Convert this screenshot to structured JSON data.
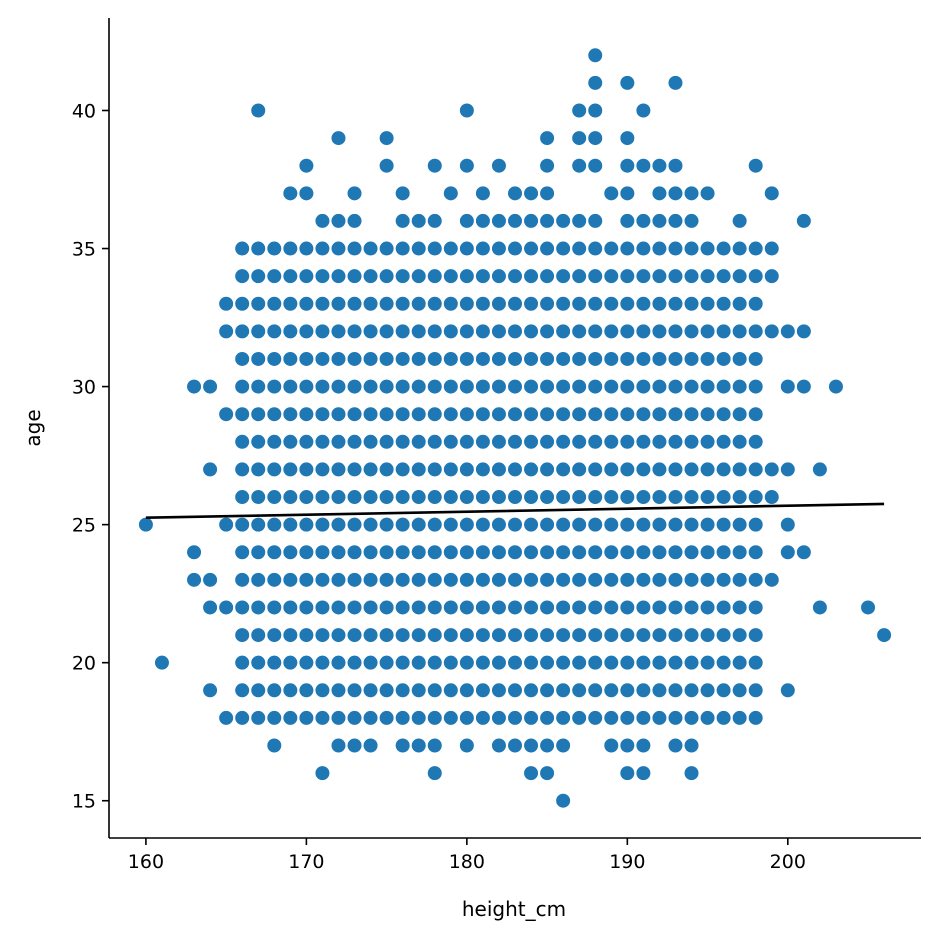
{
  "chart_data": {
    "type": "scatter",
    "title": "",
    "xlabel": "height_cm",
    "ylabel": "age",
    "xlim": [
      157.7,
      208.3
    ],
    "ylim": [
      13.65,
      43.35
    ],
    "xticks": [
      160,
      170,
      180,
      190,
      200
    ],
    "xtick_labels": [
      "160",
      "170",
      "180",
      "190",
      "200"
    ],
    "yticks": [
      15,
      20,
      25,
      30,
      35,
      40
    ],
    "ytick_labels": [
      "15",
      "20",
      "25",
      "30",
      "35",
      "40"
    ],
    "grid": false,
    "legend": false,
    "colors": {
      "points": "#1f77b4",
      "fit_line": "#000000",
      "axes": "#000000"
    },
    "dense_block": [
      {
        "x_range": [
          166,
          198
        ],
        "y_range": [
          18,
          35
        ]
      },
      {
        "x_range": [
          168,
          197
        ],
        "y_range": [
          19,
          34
        ]
      },
      {
        "x_range": [
          170,
          197
        ],
        "y_range": [
          20,
          32
        ]
      }
    ],
    "points": [
      [
        160,
        25
      ],
      [
        161,
        20
      ],
      [
        163,
        30
      ],
      [
        163,
        24
      ],
      [
        163,
        23
      ],
      [
        164,
        30
      ],
      [
        164,
        27
      ],
      [
        164,
        23
      ],
      [
        164,
        22
      ],
      [
        164,
        19
      ],
      [
        165,
        33
      ],
      [
        165,
        32
      ],
      [
        165,
        29
      ],
      [
        165,
        25
      ],
      [
        165,
        22
      ],
      [
        165,
        18
      ],
      [
        166,
        32
      ],
      [
        166,
        30
      ],
      [
        166,
        28
      ],
      [
        166,
        25
      ],
      [
        166,
        24
      ],
      [
        166,
        21
      ],
      [
        166,
        20
      ],
      [
        166,
        18
      ],
      [
        167,
        40
      ],
      [
        167,
        32
      ],
      [
        167,
        31
      ],
      [
        167,
        27
      ],
      [
        167,
        26
      ],
      [
        167,
        24
      ],
      [
        167,
        23
      ],
      [
        167,
        22
      ],
      [
        167,
        19
      ],
      [
        168,
        32
      ],
      [
        168,
        31
      ],
      [
        168,
        29
      ],
      [
        168,
        27
      ],
      [
        168,
        25
      ],
      [
        168,
        24
      ],
      [
        168,
        23
      ],
      [
        168,
        22
      ],
      [
        168,
        21
      ],
      [
        168,
        19
      ],
      [
        168,
        18
      ],
      [
        168,
        17
      ],
      [
        169,
        37
      ],
      [
        169,
        35
      ],
      [
        169,
        33
      ],
      [
        169,
        32
      ],
      [
        169,
        31
      ],
      [
        169,
        29
      ],
      [
        169,
        28
      ],
      [
        169,
        27
      ],
      [
        169,
        26
      ],
      [
        169,
        25
      ],
      [
        169,
        24
      ],
      [
        169,
        23
      ],
      [
        169,
        22
      ],
      [
        169,
        21
      ],
      [
        169,
        20
      ],
      [
        169,
        19
      ],
      [
        170,
        38
      ],
      [
        170,
        37
      ],
      [
        170,
        34
      ],
      [
        170,
        33
      ],
      [
        171,
        36
      ],
      [
        171,
        33
      ],
      [
        171,
        16
      ],
      [
        172,
        39
      ],
      [
        172,
        36
      ],
      [
        172,
        34
      ],
      [
        172,
        17
      ],
      [
        173,
        37
      ],
      [
        173,
        36
      ],
      [
        173,
        34
      ],
      [
        173,
        33
      ],
      [
        173,
        18
      ],
      [
        173,
        17
      ],
      [
        174,
        35
      ],
      [
        174,
        34
      ],
      [
        174,
        33
      ],
      [
        174,
        18
      ],
      [
        174,
        17
      ],
      [
        175,
        39
      ],
      [
        175,
        38
      ],
      [
        175,
        34
      ],
      [
        175,
        33
      ],
      [
        175,
        18
      ],
      [
        176,
        37
      ],
      [
        176,
        36
      ],
      [
        176,
        35
      ],
      [
        176,
        34
      ],
      [
        176,
        33
      ],
      [
        176,
        18
      ],
      [
        176,
        17
      ],
      [
        177,
        36
      ],
      [
        177,
        35
      ],
      [
        177,
        34
      ],
      [
        177,
        33
      ],
      [
        177,
        18
      ],
      [
        177,
        17
      ],
      [
        178,
        38
      ],
      [
        178,
        36
      ],
      [
        178,
        35
      ],
      [
        178,
        34
      ],
      [
        178,
        33
      ],
      [
        178,
        18
      ],
      [
        178,
        17
      ],
      [
        178,
        16
      ],
      [
        179,
        37
      ],
      [
        179,
        35
      ],
      [
        179,
        34
      ],
      [
        179,
        33
      ],
      [
        179,
        18
      ],
      [
        180,
        40
      ],
      [
        180,
        38
      ],
      [
        180,
        36
      ],
      [
        180,
        35
      ],
      [
        180,
        34
      ],
      [
        180,
        33
      ],
      [
        180,
        18
      ],
      [
        180,
        17
      ],
      [
        181,
        37
      ],
      [
        181,
        36
      ],
      [
        181,
        35
      ],
      [
        181,
        34
      ],
      [
        181,
        33
      ],
      [
        181,
        18
      ],
      [
        182,
        38
      ],
      [
        182,
        36
      ],
      [
        182,
        35
      ],
      [
        182,
        34
      ],
      [
        182,
        33
      ],
      [
        182,
        18
      ],
      [
        182,
        17
      ],
      [
        183,
        37
      ],
      [
        183,
        36
      ],
      [
        183,
        35
      ],
      [
        183,
        34
      ],
      [
        183,
        33
      ],
      [
        183,
        18
      ],
      [
        183,
        17
      ],
      [
        184,
        37
      ],
      [
        184,
        36
      ],
      [
        184,
        35
      ],
      [
        184,
        34
      ],
      [
        184,
        33
      ],
      [
        184,
        18
      ],
      [
        184,
        17
      ],
      [
        184,
        16
      ],
      [
        185,
        39
      ],
      [
        185,
        38
      ],
      [
        185,
        37
      ],
      [
        185,
        36
      ],
      [
        185,
        35
      ],
      [
        185,
        34
      ],
      [
        185,
        33
      ],
      [
        185,
        18
      ],
      [
        185,
        17
      ],
      [
        185,
        16
      ],
      [
        186,
        36
      ],
      [
        186,
        35
      ],
      [
        186,
        34
      ],
      [
        186,
        33
      ],
      [
        186,
        18
      ],
      [
        186,
        17
      ],
      [
        186,
        15
      ],
      [
        187,
        40
      ],
      [
        187,
        39
      ],
      [
        187,
        38
      ],
      [
        187,
        36
      ],
      [
        187,
        35
      ],
      [
        187,
        34
      ],
      [
        187,
        33
      ],
      [
        187,
        18
      ],
      [
        188,
        42
      ],
      [
        188,
        41
      ],
      [
        188,
        40
      ],
      [
        188,
        39
      ],
      [
        188,
        38
      ],
      [
        188,
        36
      ],
      [
        188,
        35
      ],
      [
        188,
        34
      ],
      [
        188,
        33
      ],
      [
        188,
        18
      ],
      [
        189,
        37
      ],
      [
        189,
        35
      ],
      [
        189,
        34
      ],
      [
        189,
        33
      ],
      [
        189,
        18
      ],
      [
        189,
        17
      ],
      [
        190,
        41
      ],
      [
        190,
        39
      ],
      [
        190,
        38
      ],
      [
        190,
        37
      ],
      [
        190,
        36
      ],
      [
        190,
        35
      ],
      [
        190,
        34
      ],
      [
        190,
        33
      ],
      [
        190,
        18
      ],
      [
        190,
        17
      ],
      [
        190,
        16
      ],
      [
        191,
        40
      ],
      [
        191,
        38
      ],
      [
        191,
        36
      ],
      [
        191,
        35
      ],
      [
        191,
        34
      ],
      [
        191,
        33
      ],
      [
        191,
        18
      ],
      [
        191,
        17
      ],
      [
        191,
        16
      ],
      [
        192,
        38
      ],
      [
        192,
        37
      ],
      [
        192,
        36
      ],
      [
        192,
        35
      ],
      [
        192,
        34
      ],
      [
        192,
        33
      ],
      [
        192,
        18
      ],
      [
        193,
        41
      ],
      [
        193,
        38
      ],
      [
        193,
        37
      ],
      [
        193,
        36
      ],
      [
        193,
        35
      ],
      [
        193,
        34
      ],
      [
        193,
        33
      ],
      [
        193,
        18
      ],
      [
        193,
        17
      ],
      [
        194,
        37
      ],
      [
        194,
        36
      ],
      [
        194,
        35
      ],
      [
        194,
        34
      ],
      [
        194,
        33
      ],
      [
        194,
        18
      ],
      [
        194,
        17
      ],
      [
        194,
        16
      ],
      [
        195,
        37
      ],
      [
        195,
        35
      ],
      [
        195,
        34
      ],
      [
        195,
        33
      ],
      [
        195,
        32
      ],
      [
        195,
        31
      ],
      [
        195,
        30
      ],
      [
        195,
        29
      ],
      [
        195,
        28
      ],
      [
        195,
        27
      ],
      [
        195,
        26
      ],
      [
        195,
        25
      ],
      [
        195,
        24
      ],
      [
        195,
        23
      ],
      [
        195,
        22
      ],
      [
        195,
        21
      ],
      [
        195,
        20
      ],
      [
        195,
        19
      ],
      [
        196,
        35
      ],
      [
        196,
        34
      ],
      [
        196,
        33
      ],
      [
        196,
        32
      ],
      [
        196,
        31
      ],
      [
        196,
        30
      ],
      [
        196,
        29
      ],
      [
        196,
        28
      ],
      [
        196,
        27
      ],
      [
        196,
        26
      ],
      [
        196,
        25
      ],
      [
        196,
        24
      ],
      [
        196,
        23
      ],
      [
        196,
        22
      ],
      [
        196,
        21
      ],
      [
        196,
        20
      ],
      [
        196,
        19
      ],
      [
        196,
        18
      ],
      [
        197,
        36
      ],
      [
        197,
        35
      ],
      [
        197,
        32
      ],
      [
        197,
        31
      ],
      [
        197,
        29
      ],
      [
        197,
        28
      ],
      [
        197,
        27
      ],
      [
        197,
        26
      ],
      [
        197,
        25
      ],
      [
        197,
        24
      ],
      [
        197,
        23
      ],
      [
        197,
        22
      ],
      [
        197,
        21
      ],
      [
        197,
        20
      ],
      [
        197,
        19
      ],
      [
        198,
        38
      ],
      [
        198,
        35
      ],
      [
        198,
        34
      ],
      [
        198,
        32
      ],
      [
        198,
        31
      ],
      [
        198,
        26
      ],
      [
        198,
        25
      ],
      [
        198,
        23
      ],
      [
        198,
        22
      ],
      [
        198,
        21
      ],
      [
        198,
        20
      ],
      [
        198,
        18
      ],
      [
        199,
        37
      ],
      [
        199,
        35
      ],
      [
        199,
        34
      ],
      [
        199,
        32
      ],
      [
        199,
        27
      ],
      [
        199,
        26
      ],
      [
        199,
        23
      ],
      [
        200,
        32
      ],
      [
        200,
        30
      ],
      [
        200,
        27
      ],
      [
        200,
        25
      ],
      [
        200,
        24
      ],
      [
        200,
        19
      ],
      [
        201,
        36
      ],
      [
        201,
        32
      ],
      [
        201,
        30
      ],
      [
        201,
        24
      ],
      [
        202,
        27
      ],
      [
        202,
        22
      ],
      [
        203,
        30
      ],
      [
        205,
        22
      ],
      [
        206,
        21
      ]
    ],
    "fit_line": {
      "x": [
        160,
        206
      ],
      "y": [
        25.25,
        25.75
      ]
    }
  }
}
